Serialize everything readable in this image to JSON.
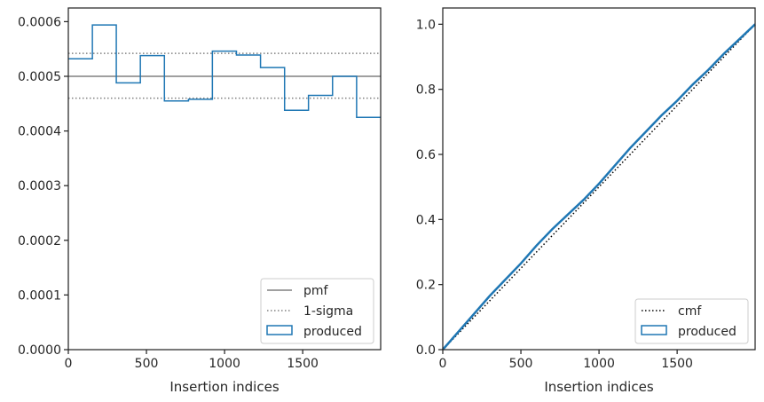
{
  "chart_data": [
    {
      "type": "step",
      "panel": "left",
      "xlabel": "Insertion indices",
      "ylabel": "",
      "xlim": [
        0,
        1999
      ],
      "ylim": [
        0,
        0.000625
      ],
      "x_ticks": [
        0,
        500,
        1000,
        1500
      ],
      "x_tick_labels": [
        "0",
        "500",
        "1000",
        "1500"
      ],
      "y_ticks": [
        0,
        0.0001,
        0.0002,
        0.0003,
        0.0004,
        0.0005,
        0.0006
      ],
      "y_tick_labels": [
        "0.0000",
        "0.0001",
        "0.0002",
        "0.0003",
        "0.0004",
        "0.0005",
        "0.0006"
      ],
      "grid": false,
      "legend_placement": "lower-right",
      "reference_lines": [
        {
          "name": "pmf",
          "value": 0.0005,
          "style": "solid",
          "color": "#808080"
        },
        {
          "name": "1-sigma",
          "values": [
            0.000542,
            0.00046
          ],
          "style": "dotted",
          "color": "#808080"
        }
      ],
      "series": [
        {
          "name": "produced",
          "color": "#1f77b4",
          "bin_edges": [
            0,
            154,
            307,
            461,
            615,
            769,
            922,
            1076,
            1230,
            1384,
            1537,
            1691,
            1845,
            1999
          ],
          "values": [
            0.000532,
            0.000594,
            0.000488,
            0.000538,
            0.000455,
            0.000458,
            0.000546,
            0.000539,
            0.000516,
            0.000438,
            0.000465,
            0.0005,
            0.000425
          ]
        }
      ],
      "legend": [
        "pmf",
        "1-sigma",
        "produced"
      ]
    },
    {
      "type": "step",
      "panel": "right",
      "xlabel": "Insertion indices",
      "ylabel": "",
      "xlim": [
        0,
        1999
      ],
      "ylim": [
        0,
        1.05
      ],
      "x_ticks": [
        0,
        500,
        1000,
        1500
      ],
      "x_tick_labels": [
        "0",
        "500",
        "1000",
        "1500"
      ],
      "y_ticks": [
        0,
        0.2,
        0.4,
        0.6,
        0.8,
        1.0
      ],
      "y_tick_labels": [
        "0.0",
        "0.2",
        "0.4",
        "0.6",
        "0.8",
        "1.0"
      ],
      "grid": false,
      "legend_placement": "lower-right",
      "series": [
        {
          "name": "cmf",
          "color": "#000000",
          "style": "dotted",
          "x": [
            0,
            1999
          ],
          "y": [
            0,
            1.0
          ]
        },
        {
          "name": "produced",
          "color": "#1f77b4",
          "x": [
            0,
            100,
            200,
            300,
            400,
            500,
            600,
            700,
            800,
            900,
            1000,
            1100,
            1200,
            1300,
            1400,
            1500,
            1600,
            1700,
            1800,
            1900,
            1999
          ],
          "y": [
            0,
            0.055,
            0.11,
            0.165,
            0.215,
            0.265,
            0.32,
            0.37,
            0.415,
            0.46,
            0.51,
            0.565,
            0.62,
            0.67,
            0.72,
            0.765,
            0.815,
            0.86,
            0.91,
            0.955,
            1.0
          ]
        }
      ],
      "legend": [
        "cmf",
        "produced"
      ]
    }
  ]
}
